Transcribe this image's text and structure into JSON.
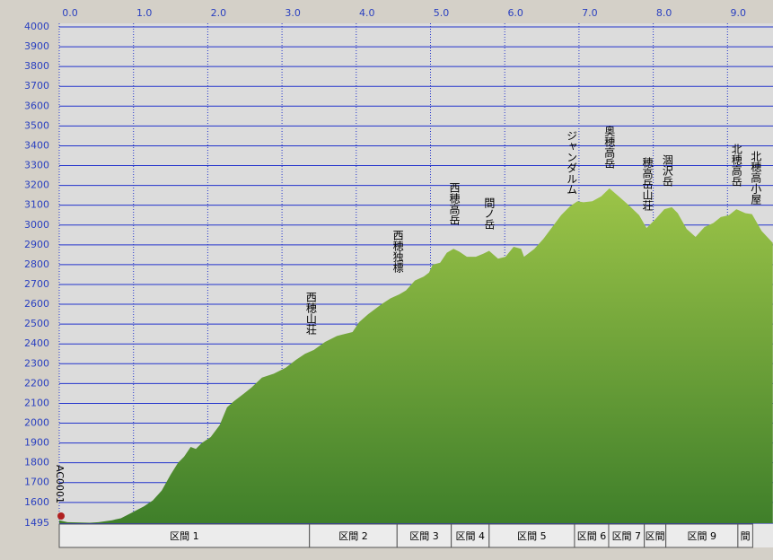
{
  "chart_data": {
    "type": "area",
    "x": [
      0,
      0.11,
      0.41,
      0.53,
      0.71,
      0.83,
      0.96,
      1.14,
      1.26,
      1.38,
      1.5,
      1.6,
      1.68,
      1.77,
      1.84,
      1.92,
      2.04,
      2.16,
      2.26,
      2.35,
      2.49,
      2.59,
      2.73,
      2.89,
      3.05,
      3.19,
      3.31,
      3.43,
      3.58,
      3.74,
      3.95,
      4.04,
      4.16,
      4.34,
      4.46,
      4.58,
      4.67,
      4.79,
      4.91,
      4.98,
      5.03,
      5.13,
      5.22,
      5.31,
      5.39,
      5.49,
      5.61,
      5.71,
      5.79,
      5.91,
      6.01,
      6.12,
      6.22,
      6.26,
      6.4,
      6.52,
      6.64,
      6.76,
      6.88,
      6.98,
      7.06,
      7.18,
      7.3,
      7.41,
      7.55,
      7.67,
      7.81,
      7.91,
      8.03,
      8.15,
      8.25,
      8.33,
      8.45,
      8.57,
      8.69,
      8.81,
      8.91,
      9.02,
      9.12,
      9.24,
      9.33,
      9.46,
      9.61
    ],
    "series": [
      {
        "color": "#6e9e35",
        "values": [
          1510,
          1500,
          1497,
          1500,
          1510,
          1520,
          1545,
          1580,
          1610,
          1660,
          1740,
          1800,
          1830,
          1880,
          1870,
          1900,
          1930,
          1990,
          2080,
          2110,
          2150,
          2180,
          2230,
          2250,
          2280,
          2320,
          2350,
          2370,
          2410,
          2440,
          2460,
          2510,
          2550,
          2600,
          2630,
          2650,
          2670,
          2720,
          2740,
          2760,
          2800,
          2810,
          2860,
          2880,
          2865,
          2840,
          2840,
          2855,
          2870,
          2830,
          2840,
          2890,
          2880,
          2840,
          2880,
          2930,
          2990,
          3050,
          3095,
          3120,
          3115,
          3120,
          3145,
          3185,
          3140,
          3100,
          3050,
          2985,
          3030,
          3080,
          3090,
          3060,
          2980,
          2940,
          2990,
          3010,
          3040,
          3050,
          3080,
          3060,
          3055,
          2970,
          2910
        ]
      }
    ],
    "xlim": [
      0,
      9.62
    ],
    "ylim": [
      1495,
      4000
    ],
    "xticks": [
      {
        "value": 0,
        "label": "0.0"
      },
      {
        "value": 1,
        "label": "1.0"
      },
      {
        "value": 2,
        "label": "2.0"
      },
      {
        "value": 3,
        "label": "3.0"
      },
      {
        "value": 4,
        "label": "4.0"
      },
      {
        "value": 5,
        "label": "5.0"
      },
      {
        "value": 6,
        "label": "6.0"
      },
      {
        "value": 7,
        "label": "7.0"
      },
      {
        "value": 8,
        "label": "8.0"
      },
      {
        "value": 9,
        "label": "9.0"
      }
    ],
    "yticks": [
      1495,
      1600,
      1700,
      1800,
      1900,
      2000,
      2100,
      2200,
      2300,
      2400,
      2500,
      2600,
      2700,
      2800,
      2900,
      3000,
      3100,
      3200,
      3300,
      3400,
      3500,
      3600,
      3700,
      3800,
      3900,
      4000
    ],
    "grid": true,
    "annotations": [
      {
        "text": "西穂山荘",
        "x": 3.39,
        "y": 2664
      },
      {
        "text": "西穂独標",
        "x": 4.56,
        "y": 2976
      },
      {
        "text": "西穂高岳",
        "x": 5.32,
        "y": 3216
      },
      {
        "text": "間ノ岳",
        "x": 5.79,
        "y": 3140
      },
      {
        "text": "ジャンダルム",
        "x": 6.9,
        "y": 3479
      },
      {
        "text": "奥穂高岳",
        "x": 7.41,
        "y": 3502
      },
      {
        "text": "穂高岳山荘",
        "x": 7.92,
        "y": 3343
      },
      {
        "text": "涸沢岳",
        "x": 8.19,
        "y": 3357
      },
      {
        "text": "北穂高岳",
        "x": 9.12,
        "y": 3411
      },
      {
        "text": "北穂高小屋",
        "x": 9.38,
        "y": 3375
      }
    ],
    "marker_label": "AC0001",
    "sections": [
      {
        "label": "区間 1",
        "start": 0,
        "end": 3.37
      },
      {
        "label": "区間 2",
        "start": 3.37,
        "end": 4.55
      },
      {
        "label": "区間 3",
        "start": 4.55,
        "end": 5.28
      },
      {
        "label": "区間 4",
        "start": 5.28,
        "end": 5.79
      },
      {
        "label": "区間 5",
        "start": 5.79,
        "end": 6.94
      },
      {
        "label": "区間 6",
        "start": 6.94,
        "end": 7.4
      },
      {
        "label": "区間 7",
        "start": 7.4,
        "end": 7.88
      },
      {
        "label": "区間",
        "start": 7.88,
        "end": 8.17
      },
      {
        "label": "区間 9",
        "start": 8.17,
        "end": 9.14
      },
      {
        "label": "間",
        "start": 9.14,
        "end": 9.34
      }
    ]
  }
}
